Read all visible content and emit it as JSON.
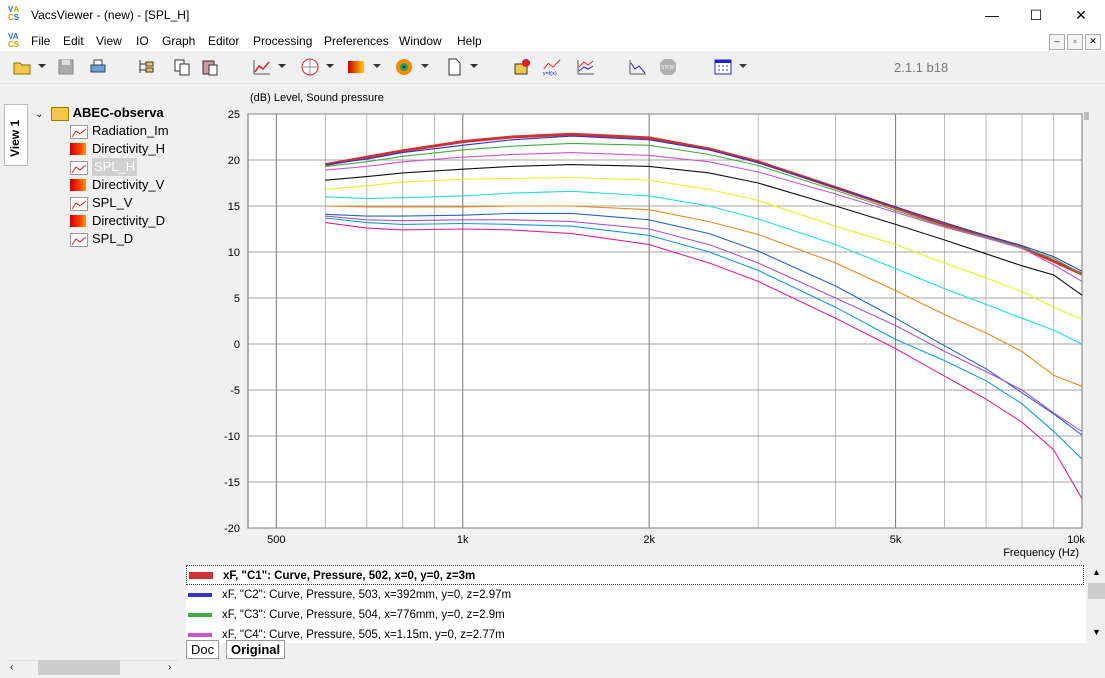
{
  "window": {
    "title": "VacsViewer - (new) - [SPL_H]",
    "logo_letters": [
      "V",
      "A",
      "C",
      "S"
    ],
    "minimize_glyph": "—",
    "maximize_glyph": "☐",
    "close_glyph": "✕"
  },
  "menu": {
    "items": [
      "File",
      "Edit",
      "View",
      "IO",
      "Graph",
      "Editor",
      "Processing",
      "Preferences",
      "Window",
      "Help"
    ],
    "mdi_buttons": [
      "–",
      "▫",
      "✕"
    ]
  },
  "toolbar": {
    "icons": [
      "open-folder-icon",
      "save-icon",
      "print-icon",
      "tree-icon",
      "copy-icon",
      "paste-icon",
      "line-graph-icon",
      "polar-graph-icon",
      "color-map-icon",
      "balloon-icon",
      "new-document-icon",
      "observer-icon",
      "y-equals-fx-icon",
      "multi-graph-icon",
      "process-icon",
      "stop-icon",
      "window-layout-icon"
    ],
    "version": "2.1.1 b18"
  },
  "sidebar": {
    "view_tab": "View 1",
    "tree_root": "ABEC-observa",
    "tree_items": [
      {
        "label": "Radiation_Im",
        "icon": "line-graph-icon"
      },
      {
        "label": "Directivity_H",
        "icon": "color-map-icon"
      },
      {
        "label": "SPL_H",
        "icon": "line-graph-icon",
        "selected": true
      },
      {
        "label": "Directivity_V",
        "icon": "color-map-icon"
      },
      {
        "label": "SPL_V",
        "icon": "line-graph-icon"
      },
      {
        "label": "Directivity_D",
        "icon": "color-map-icon"
      },
      {
        "label": "SPL_D",
        "icon": "line-graph-icon"
      }
    ]
  },
  "chart_data": {
    "type": "line",
    "title": "(dB)  Level, Sound pressure",
    "xlabel": "Frequency  (Hz)",
    "xscale": "log",
    "xlim": [
      450,
      10000
    ],
    "ylim": [
      -20,
      25
    ],
    "grid": true,
    "x_tick_labels": [
      {
        "value": 500,
        "label": "500"
      },
      {
        "value": 1000,
        "label": "1k"
      },
      {
        "value": 2000,
        "label": "2k"
      },
      {
        "value": 5000,
        "label": "5k"
      },
      {
        "value": 10000,
        "label": "10k"
      }
    ],
    "y_ticks": [
      25,
      20,
      15,
      10,
      5,
      0,
      -5,
      -10,
      -15,
      -20
    ],
    "x": [
      600,
      700,
      800,
      1000,
      1200,
      1500,
      2000,
      2500,
      3000,
      4000,
      5000,
      6000,
      7000,
      8000,
      9000,
      10000
    ],
    "series": [
      {
        "color": "#cc3333",
        "values": [
          19.5,
          20.3,
          21.0,
          22.0,
          22.5,
          22.8,
          22.4,
          21.2,
          19.8,
          17.0,
          14.8,
          13.0,
          11.7,
          10.5,
          9.0,
          7.6
        ]
      },
      {
        "color": "#3333cc",
        "values": [
          19.5,
          20.1,
          20.8,
          21.6,
          22.2,
          22.6,
          22.2,
          21.1,
          19.7,
          17.0,
          14.9,
          13.2,
          11.8,
          10.7,
          9.5,
          7.9
        ]
      },
      {
        "color": "#44aa44",
        "values": [
          19.3,
          19.8,
          20.4,
          21.1,
          21.5,
          21.8,
          21.6,
          20.6,
          19.4,
          16.7,
          14.5,
          12.8,
          11.6,
          10.5,
          9.3,
          7.6
        ]
      },
      {
        "color": "#cc55cc",
        "values": [
          18.9,
          19.3,
          19.8,
          20.3,
          20.6,
          20.8,
          20.5,
          19.8,
          18.7,
          16.3,
          14.3,
          12.7,
          11.5,
          10.4,
          8.6,
          6.8
        ]
      },
      {
        "color": "#111111",
        "values": [
          17.8,
          18.2,
          18.6,
          19.0,
          19.3,
          19.5,
          19.3,
          18.6,
          17.5,
          15.0,
          13.0,
          11.3,
          9.8,
          8.5,
          7.5,
          5.3
        ]
      },
      {
        "color": "#eeee22",
        "values": [
          16.8,
          17.2,
          17.6,
          17.9,
          18.0,
          18.1,
          17.8,
          16.8,
          15.6,
          12.8,
          10.8,
          8.8,
          7.2,
          5.7,
          4.0,
          2.7
        ]
      },
      {
        "color": "#22dddd",
        "values": [
          16.0,
          15.8,
          15.9,
          16.1,
          16.4,
          16.6,
          16.1,
          15.0,
          13.6,
          10.8,
          8.2,
          6.0,
          4.3,
          2.8,
          1.5,
          0.0
        ]
      },
      {
        "color": "#ee8822",
        "values": [
          15.0,
          14.9,
          14.9,
          14.9,
          15.0,
          15.0,
          14.6,
          13.3,
          11.9,
          8.8,
          5.8,
          3.2,
          1.2,
          -0.8,
          -3.4,
          -4.6
        ]
      },
      {
        "color": "#2266cc",
        "values": [
          14.1,
          13.9,
          13.9,
          14.0,
          14.2,
          14.2,
          13.5,
          12.0,
          10.1,
          6.3,
          2.8,
          -0.2,
          -2.7,
          -5.3,
          -7.6,
          -9.9
        ]
      },
      {
        "color": "#aa55cc",
        "values": [
          13.9,
          13.5,
          13.4,
          13.5,
          13.5,
          13.3,
          12.5,
          10.8,
          8.8,
          5.0,
          2.0,
          -0.8,
          -3.0,
          -5.0,
          -7.5,
          -9.5
        ]
      },
      {
        "color": "#1199dd",
        "values": [
          13.7,
          13.2,
          13.0,
          13.1,
          13.0,
          12.8,
          11.8,
          10.0,
          8.0,
          4.0,
          0.5,
          -1.8,
          -4.0,
          -6.5,
          -9.5,
          -12.5
        ]
      },
      {
        "color": "#dd2299",
        "values": [
          13.2,
          12.6,
          12.4,
          12.5,
          12.4,
          12.0,
          10.8,
          8.8,
          6.8,
          2.8,
          -0.5,
          -3.5,
          -6.0,
          -8.5,
          -11.5,
          -16.8
        ]
      }
    ]
  },
  "legend": {
    "rows": [
      {
        "text": "xF, \"C1\": Curve, Pressure, 502, x=0, y=0, z=3m",
        "color": "#cc3333",
        "active": true
      },
      {
        "text": "xF, \"C2\": Curve, Pressure, 503, x=392mm, y=0, z=2.97m",
        "color": "#3333cc",
        "active": false
      },
      {
        "text": "xF, \"C3\": Curve, Pressure, 504, x=776mm, y=0, z=2.9m",
        "color": "#44aa44",
        "active": false
      },
      {
        "text": "xF, \"C4\": Curve, Pressure, 505, x=1.15m, y=0, z=2.77m",
        "color": "#cc55cc",
        "active": false
      }
    ]
  },
  "bottom_tabs": {
    "doc": "Doc",
    "original": "Original"
  }
}
